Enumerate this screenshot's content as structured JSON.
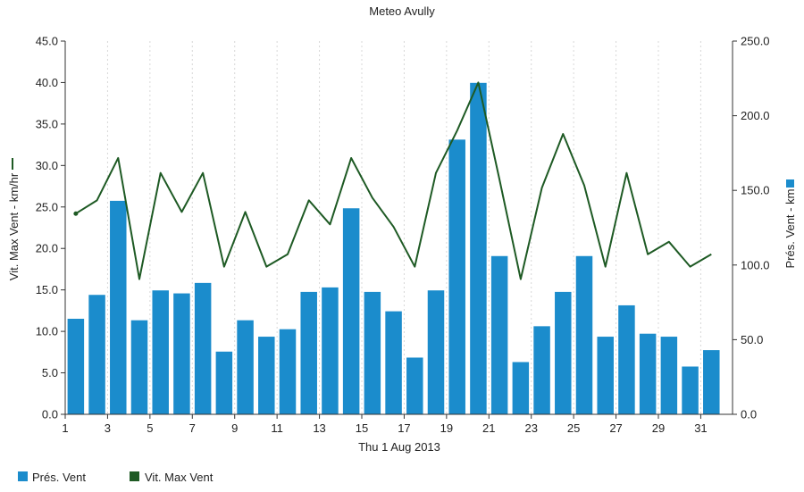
{
  "chart_data": {
    "type": "bar",
    "title": "Meteo  Avully",
    "xlabel": "Thu 1 Aug 2013",
    "ylabel_left": "Vit. Max Vent - km/hr",
    "ylabel_right": "Prés. Vent - km",
    "x_ticks": [
      "1",
      "3",
      "5",
      "7",
      "9",
      "11",
      "13",
      "15",
      "17",
      "19",
      "21",
      "23",
      "25",
      "27",
      "29",
      "31"
    ],
    "y_left_ticks": [
      "0.0",
      "5.0",
      "10.0",
      "15.0",
      "20.0",
      "25.0",
      "30.0",
      "35.0",
      "40.0",
      "45.0"
    ],
    "y_right_ticks": [
      "0.0",
      "50.0",
      "100.0",
      "150.0",
      "200.0",
      "250.0"
    ],
    "ylim_left": [
      0,
      45
    ],
    "ylim_right": [
      0,
      250
    ],
    "grid": "vertical-dashed",
    "days": [
      1,
      2,
      3,
      4,
      5,
      6,
      7,
      8,
      9,
      10,
      11,
      12,
      13,
      14,
      15,
      16,
      17,
      18,
      19,
      20,
      21,
      22,
      23,
      24,
      25,
      26,
      27,
      28,
      29,
      30,
      31
    ],
    "series": [
      {
        "name": "Prés. Vent",
        "type": "bar",
        "axis": "right",
        "color": "#1b8ccc",
        "values": [
          64,
          80,
          143,
          63,
          83,
          81,
          88,
          42,
          63,
          52,
          57,
          82,
          85,
          138,
          82,
          69,
          38,
          83,
          184,
          222,
          106,
          35,
          59,
          82,
          106,
          52,
          73,
          54,
          52,
          32,
          43
        ]
      },
      {
        "name": "Vit. Max Vent",
        "type": "line",
        "axis": "left",
        "color": "#1e5a24",
        "values": [
          24.2,
          25.8,
          30.9,
          16.3,
          29.1,
          24.4,
          29.1,
          17.8,
          24.4,
          17.8,
          19.3,
          25.8,
          22.9,
          30.9,
          26.1,
          22.6,
          17.8,
          29.1,
          34.2,
          40.0,
          28.3,
          16.3,
          27.3,
          33.8,
          27.6,
          17.8,
          29.1,
          19.3,
          20.8,
          17.8,
          19.3
        ]
      }
    ],
    "legend": [
      {
        "label": "Prés. Vent",
        "color": "#1b8ccc",
        "marker": "square"
      },
      {
        "label": "Vit. Max Vent",
        "color": "#1e5a24",
        "marker": "line"
      }
    ],
    "legend_position": "bottom-left"
  }
}
